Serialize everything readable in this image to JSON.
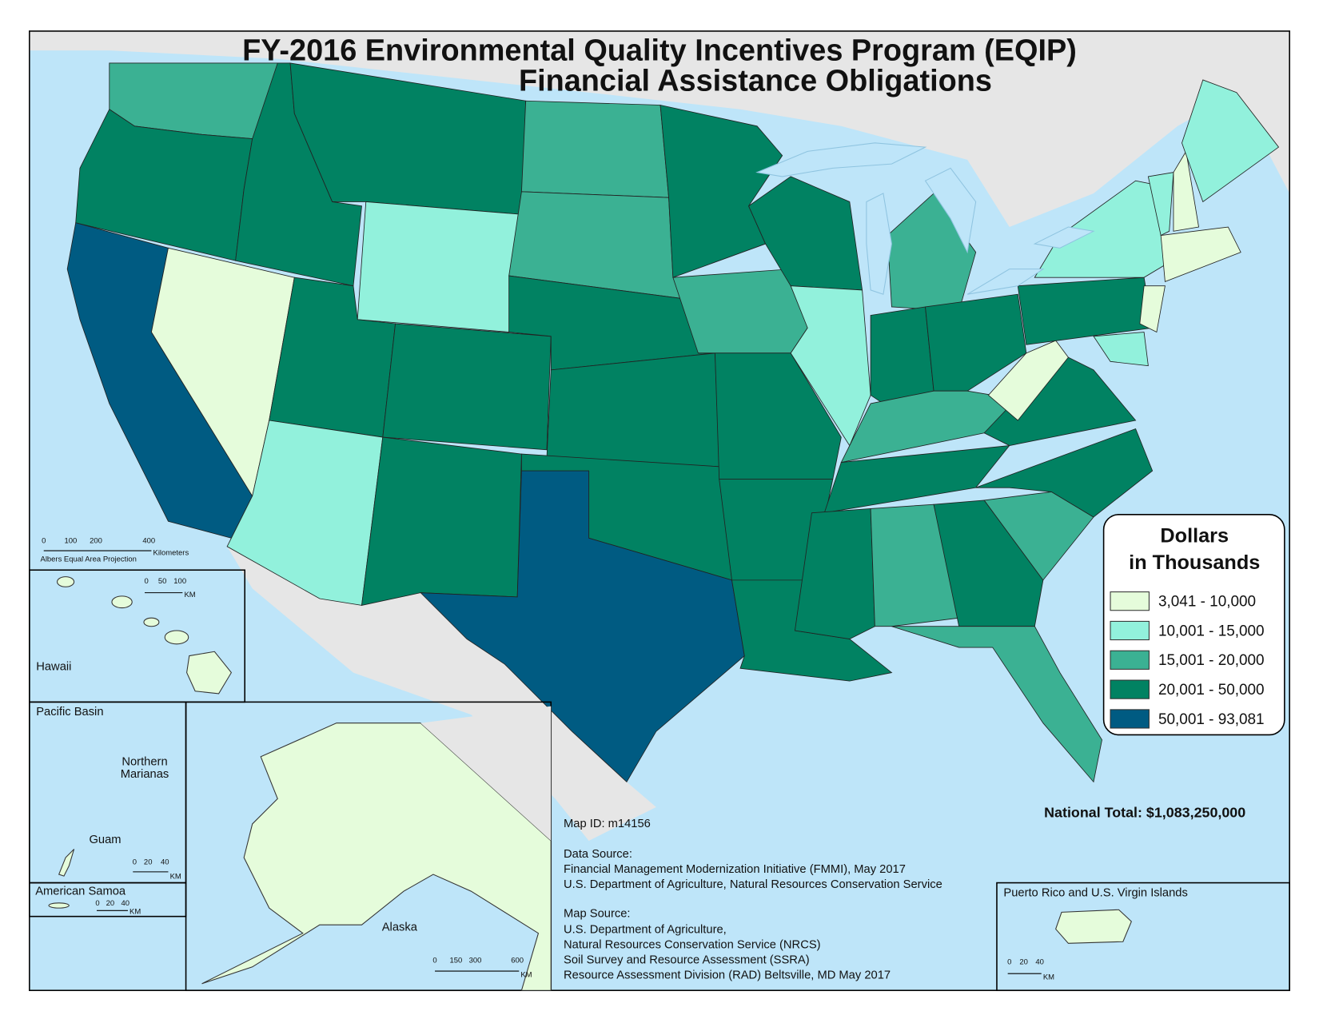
{
  "title": {
    "line1": "FY-2016 Environmental Quality Incentives Program (EQIP)",
    "line2": "Financial Assistance Obligations"
  },
  "legend": {
    "title_line1": "Dollars",
    "title_line2": "in Thousands",
    "classes": [
      {
        "label": "3,041 - 10,000",
        "color": "#e5fcdb"
      },
      {
        "label": "10,001 - 15,000",
        "color": "#92f1dc"
      },
      {
        "label": "15,001 - 20,000",
        "color": "#3bb193"
      },
      {
        "label": "20,001 - 50,000",
        "color": "#018262"
      },
      {
        "label": "50,001 - 93,081",
        "color": "#005b82"
      }
    ]
  },
  "national_total": "National Total: $1,083,250,000",
  "main_scale": {
    "ticks": [
      "0",
      "100",
      "200",
      "400"
    ],
    "unit": "Kilometers",
    "projection": "Albers Equal Area Projection"
  },
  "hawaii": {
    "label": "Hawaii",
    "ticks": [
      "0",
      "50",
      "100"
    ],
    "unit": "KM"
  },
  "pacific": {
    "label": "Pacific Basin",
    "marianas_1": "Northern",
    "marianas_2": "Marianas",
    "guam": "Guam",
    "ticks": [
      "0",
      "20",
      "40"
    ],
    "unit": "KM"
  },
  "samoa": {
    "label": "American Samoa",
    "ticks": [
      "0",
      "20",
      "40"
    ],
    "unit": "KM"
  },
  "alaska": {
    "label": "Alaska",
    "ticks": [
      "0",
      "150",
      "300",
      "600"
    ],
    "unit": "KM"
  },
  "puerto_rico": {
    "label": "Puerto Rico and U.S. Virgin Islands",
    "ticks": [
      "0",
      "20",
      "40"
    ],
    "unit": "KM"
  },
  "notes": {
    "map_id": "Map ID:   m14156",
    "data_source_title": "Data Source:",
    "data_source": [
      "Financial Management Modernization Initiative (FMMI), May 2017",
      "U.S. Department of Agriculture, Natural Resources Conservation Service"
    ],
    "map_source_title": "Map Source:",
    "map_source": [
      "U.S. Department of Agriculture,",
      "Natural Resources Conservation Service (NRCS)",
      "Soil Survey and Resource Assessment (SSRA)",
      "Resource Assessment Division (RAD)    Beltsville, MD   May 2017"
    ]
  }
}
